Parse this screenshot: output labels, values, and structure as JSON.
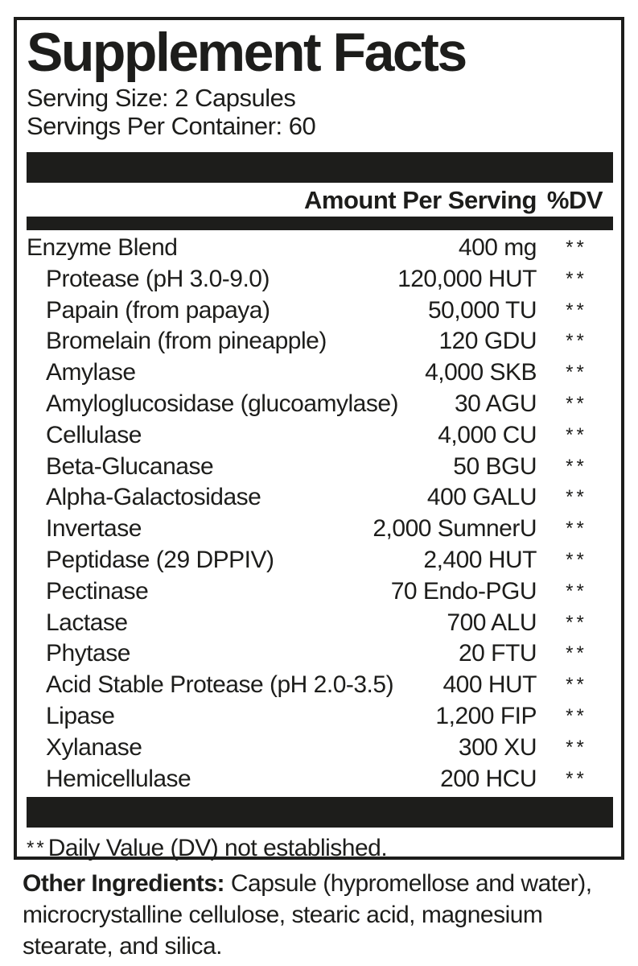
{
  "panel": {
    "title": "Supplement Facts",
    "serving_size": "Serving Size: 2 Capsules",
    "servings_per_container": "Servings Per Container: 60",
    "columns": {
      "amount": "Amount Per Serving",
      "dv": "%DV"
    },
    "rows": [
      {
        "name": "Enzyme Blend",
        "amount": "400 mg",
        "dv": "**",
        "indent": false
      },
      {
        "name": "Protease (pH 3.0-9.0)",
        "amount": "120,000 HUT",
        "dv": "**",
        "indent": true
      },
      {
        "name": "Papain (from papaya)",
        "amount": "50,000 TU",
        "dv": "**",
        "indent": true
      },
      {
        "name": "Bromelain (from pineapple)",
        "amount": "120 GDU",
        "dv": "**",
        "indent": true
      },
      {
        "name": "Amylase",
        "amount": "4,000 SKB",
        "dv": "**",
        "indent": true
      },
      {
        "name": "Amyloglucosidase (glucoamylase)",
        "amount": "30 AGU",
        "dv": "**",
        "indent": true
      },
      {
        "name": "Cellulase",
        "amount": "4,000 CU",
        "dv": "**",
        "indent": true
      },
      {
        "name": "Beta-Glucanase",
        "amount": "50 BGU",
        "dv": "**",
        "indent": true
      },
      {
        "name": "Alpha-Galactosidase",
        "amount": "400 GALU",
        "dv": "**",
        "indent": true
      },
      {
        "name": "Invertase",
        "amount": "2,000 SumnerU",
        "dv": "**",
        "indent": true
      },
      {
        "name": "Peptidase (29 DPPIV)",
        "amount": "2,400 HUT",
        "dv": "**",
        "indent": true
      },
      {
        "name": "Pectinase",
        "amount": "70 Endo-PGU",
        "dv": "**",
        "indent": true
      },
      {
        "name": "Lactase",
        "amount": "700 ALU",
        "dv": "**",
        "indent": true
      },
      {
        "name": "Phytase",
        "amount": "20 FTU",
        "dv": "**",
        "indent": true
      },
      {
        "name": "Acid Stable Protease (pH 2.0-3.5)",
        "amount": "400 HUT",
        "dv": "**",
        "indent": true
      },
      {
        "name": "Lipase",
        "amount": "1,200 FIP",
        "dv": "**",
        "indent": true
      },
      {
        "name": "Xylanase",
        "amount": "300 XU",
        "dv": "**",
        "indent": true
      },
      {
        "name": "Hemicellulase",
        "amount": "200 HCU",
        "dv": "**",
        "indent": true
      }
    ],
    "footnote": {
      "marker": "**",
      "text": "Daily Value (DV) not established."
    }
  },
  "other_ingredients": {
    "label": "Other Ingredients:",
    "text": " Capsule (hypromellose and water),\nmicrocrystalline cellulose, stearic acid, magnesium\nstearate, and silica."
  },
  "colors": {
    "ink": "#1d1d1b",
    "background": "#ffffff"
  }
}
